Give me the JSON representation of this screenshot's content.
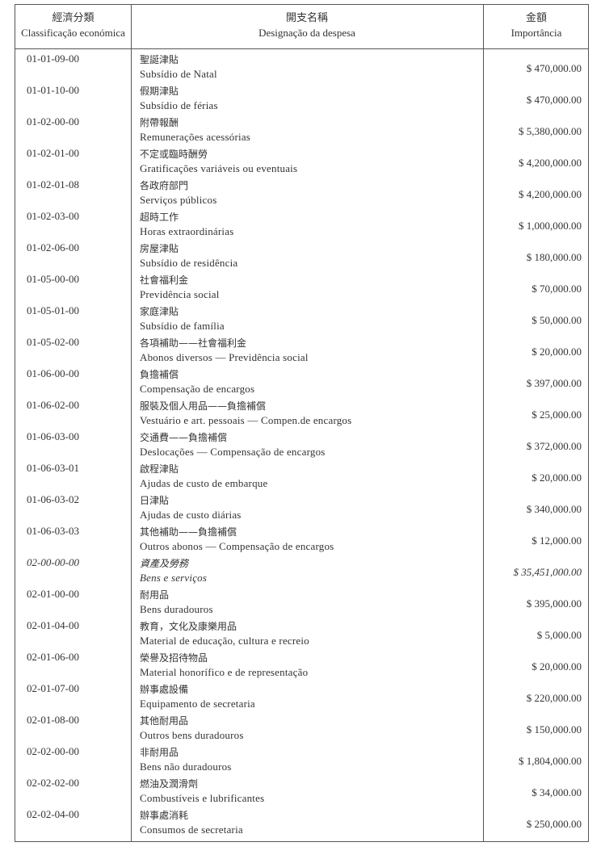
{
  "header": {
    "code": [
      "經濟分類",
      "Classificação económica"
    ],
    "designation": [
      "開支名稱",
      "Designação da despesa"
    ],
    "amount": [
      "金額",
      "Importância"
    ]
  },
  "table": {
    "rows": [
      {
        "code": "01-01-09-00",
        "name_zh": "聖誕津貼",
        "name_pt": "Subsídio de Natal",
        "amount": "$ 470,000.00"
      },
      {
        "code": "01-01-10-00",
        "name_zh": "假期津貼",
        "name_pt": "Subsídio de férias",
        "amount": "$ 470,000.00"
      },
      {
        "code": "01-02-00-00",
        "name_zh": "附帶報酬",
        "name_pt": "Remunerações acessórias",
        "amount": "$ 5,380,000.00"
      },
      {
        "code": "01-02-01-00",
        "name_zh": "不定或臨時酬勞",
        "name_pt": "Gratificações variáveis ou eventuais",
        "amount": "$ 4,200,000.00"
      },
      {
        "code": "01-02-01-08",
        "name_zh": "各政府部門",
        "name_pt": "Serviços públicos",
        "amount": "$ 4,200,000.00"
      },
      {
        "code": "01-02-03-00",
        "name_zh": "超時工作",
        "name_pt": "Horas extraordinárias",
        "amount": "$ 1,000,000.00"
      },
      {
        "code": "01-02-06-00",
        "name_zh": "房屋津貼",
        "name_pt": "Subsídio de residência",
        "amount": "$ 180,000.00"
      },
      {
        "code": "01-05-00-00",
        "name_zh": "社會福利金",
        "name_pt": "Previdência social",
        "amount": "$ 70,000.00"
      },
      {
        "code": "01-05-01-00",
        "name_zh": "家庭津貼",
        "name_pt": "Subsídio de família",
        "amount": "$ 50,000.00"
      },
      {
        "code": "01-05-02-00",
        "name_zh": "各項補助——社會福利金",
        "name_pt": "Abonos diversos — Previdência social",
        "amount": "$ 20,000.00"
      },
      {
        "code": "01-06-00-00",
        "name_zh": "負擔補償",
        "name_pt": "Compensação de encargos",
        "amount": "$ 397,000.00"
      },
      {
        "code": "01-06-02-00",
        "name_zh": "服裝及個人用品——負擔補償",
        "name_pt": "Vestuário e art. pessoais — Compen.de encargos",
        "amount": "$ 25,000.00"
      },
      {
        "code": "01-06-03-00",
        "name_zh": "交通費——負擔補償",
        "name_pt": "Deslocações — Compensação de encargos",
        "amount": "$ 372,000.00"
      },
      {
        "code": "01-06-03-01",
        "name_zh": "啟程津貼",
        "name_pt": "Ajudas de custo de embarque",
        "amount": "$ 20,000.00"
      },
      {
        "code": "01-06-03-02",
        "name_zh": "日津貼",
        "name_pt": "Ajudas de custo diárias",
        "amount": "$ 340,000.00"
      },
      {
        "code": "01-06-03-03",
        "name_zh": "其他補助——負擔補償",
        "name_pt": "Outros abonos — Compensação de encargos",
        "amount": "$ 12,000.00"
      },
      {
        "code": "02-00-00-00",
        "name_zh": "資產及勞務",
        "name_pt": "Bens e serviços",
        "amount": "$ 35,451,000.00",
        "italic": true
      },
      {
        "code": "02-01-00-00",
        "name_zh": "耐用品",
        "name_pt": "Bens duradouros",
        "amount": "$ 395,000.00"
      },
      {
        "code": "02-01-04-00",
        "name_zh": "教育，文化及康樂用品",
        "name_pt": "Material de educação, cultura e recreio",
        "amount": "$ 5,000.00"
      },
      {
        "code": "02-01-06-00",
        "name_zh": "榮譽及招待物品",
        "name_pt": "Material honorífico e de representação",
        "amount": "$ 20,000.00"
      },
      {
        "code": "02-01-07-00",
        "name_zh": "辦事處設備",
        "name_pt": "Equipamento de secretaria",
        "amount": "$ 220,000.00"
      },
      {
        "code": "02-01-08-00",
        "name_zh": "其他耐用品",
        "name_pt": "Outros bens duradouros",
        "amount": "$ 150,000.00"
      },
      {
        "code": "02-02-00-00",
        "name_zh": "非耐用品",
        "name_pt": "Bens não duradouros",
        "amount": "$ 1,804,000.00"
      },
      {
        "code": "02-02-02-00",
        "name_zh": "燃油及潤滑劑",
        "name_pt": "Combustíveis e lubrificantes",
        "amount": "$ 34,000.00"
      },
      {
        "code": "02-02-04-00",
        "name_zh": "辦事處消耗",
        "name_pt": "Consumos de secretaria",
        "amount": "$ 250,000.00"
      }
    ]
  }
}
